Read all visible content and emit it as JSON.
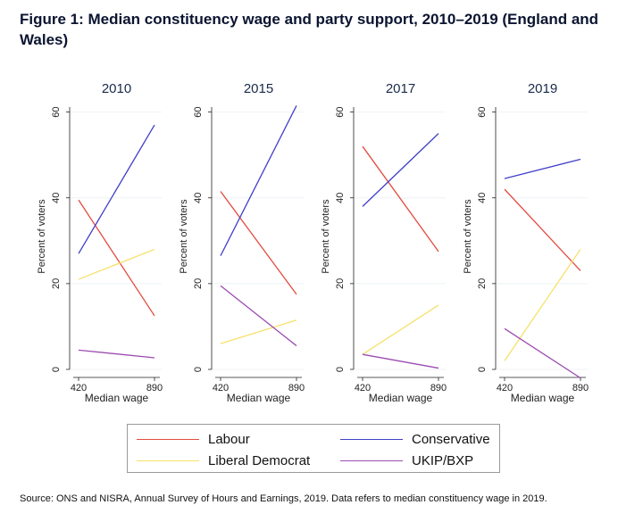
{
  "title": "Figure 1: Median constituency wage and party support, 2010–2019 (England and Wales)",
  "source": "Source: ONS and NISRA, Annual Survey of Hours and Earnings, 2019. Data refers to median constituency wage in 2019.",
  "chart_data": {
    "type": "line",
    "shared": {
      "xlabel": "Median wage",
      "ylabel": "Percent of voters",
      "x": [
        420,
        890
      ],
      "xticks": [
        "420",
        "890"
      ],
      "yticks": [
        "0",
        "20",
        "40",
        "60"
      ],
      "ylim": [
        0,
        62
      ],
      "grid": true
    },
    "series_meta": [
      {
        "name": "Labour",
        "color": "#e34b40"
      },
      {
        "name": "Conservative",
        "color": "#3f3fc8"
      },
      {
        "name": "Liberal Democrat",
        "color": "#f5e16a"
      },
      {
        "name": "UKIP/BXP",
        "color": "#9b4bb0"
      }
    ],
    "panels": [
      {
        "title": "2010",
        "series": [
          {
            "name": "Labour",
            "values": [
              39.5,
              12.5
            ]
          },
          {
            "name": "Conservative",
            "values": [
              27,
              57
            ]
          },
          {
            "name": "Liberal Democrat",
            "values": [
              21,
              28
            ]
          },
          {
            "name": "UKIP/BXP",
            "values": [
              4.5,
              2.7
            ]
          }
        ]
      },
      {
        "title": "2015",
        "series": [
          {
            "name": "Labour",
            "values": [
              41.5,
              17.5
            ]
          },
          {
            "name": "Conservative",
            "values": [
              26.5,
              61.5
            ]
          },
          {
            "name": "Liberal Democrat",
            "values": [
              6,
              11.5
            ]
          },
          {
            "name": "UKIP/BXP",
            "values": [
              19.5,
              5.5
            ]
          }
        ]
      },
      {
        "title": "2017",
        "series": [
          {
            "name": "Labour",
            "values": [
              52,
              27.5
            ]
          },
          {
            "name": "Conservative",
            "values": [
              38,
              55
            ]
          },
          {
            "name": "Liberal Democrat",
            "values": [
              3.5,
              15
            ]
          },
          {
            "name": "UKIP/BXP",
            "values": [
              3.5,
              0.3
            ]
          }
        ]
      },
      {
        "title": "2019",
        "series": [
          {
            "name": "Labour",
            "values": [
              42,
              23
            ]
          },
          {
            "name": "Conservative",
            "values": [
              44.5,
              49
            ]
          },
          {
            "name": "Liberal Democrat",
            "values": [
              2,
              28
            ]
          },
          {
            "name": "UKIP/BXP",
            "values": [
              9.5,
              -2
            ]
          }
        ]
      }
    ]
  },
  "legend": {
    "items": [
      {
        "label": "Labour",
        "color": "#e34b40"
      },
      {
        "label": "Conservative",
        "color": "#3f3fc8"
      },
      {
        "label": "Liberal Democrat",
        "color": "#f5e16a"
      },
      {
        "label": "UKIP/BXP",
        "color": "#9b4bb0"
      }
    ]
  }
}
